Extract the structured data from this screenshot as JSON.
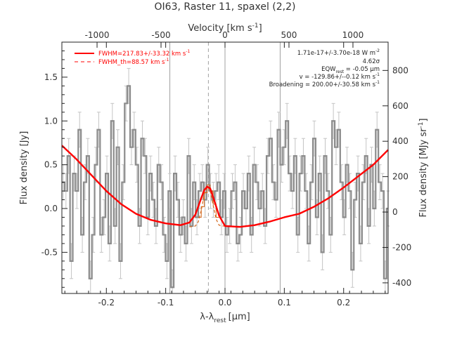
{
  "chart_data": {
    "type": "line",
    "title": "OI63, Raster 11, spaxel (2,2)",
    "xlabel": "λ-λ",
    "xlabel_sub": "rest",
    "xlabel_unit": "[μm]",
    "ylabel": "Flux density [Jy]",
    "x2label": "Velocity [km s",
    "x2label_sup": "-1",
    "x2label_end": "]",
    "y2label": "Flux density [MJy sr",
    "y2label_sup": "-1",
    "y2label_end": "]",
    "xlim": [
      -0.275,
      0.275
    ],
    "ylim": [
      -0.97,
      1.9
    ],
    "x2lim": [
      -1275,
      1275
    ],
    "y2lim": [
      -460,
      960
    ],
    "xticks": [
      -0.2,
      -0.1,
      0.0,
      0.1,
      0.2
    ],
    "xtick_labels": [
      "-0.2",
      "-0.1",
      "0.0",
      "0.1",
      "0.2"
    ],
    "yticks": [
      -0.5,
      0.0,
      0.5,
      1.0,
      1.5
    ],
    "ytick_labels": [
      "-0.5",
      "0.0",
      "0.5",
      "1.0",
      "1.5"
    ],
    "x2ticks": [
      -1000,
      -500,
      0,
      500,
      1000
    ],
    "x2tick_labels": [
      "-1000",
      "-500",
      "0",
      "500",
      "1000"
    ],
    "y2ticks": [
      -400,
      -200,
      0,
      200,
      400,
      600,
      800
    ],
    "y2tick_labels": [
      "-400",
      "-200",
      "0",
      "200",
      "400",
      "600",
      "800"
    ],
    "vlines_solid": [
      -0.093,
      0.0,
      0.093
    ],
    "vline_dashed": -0.028,
    "legend": {
      "placement": "top-left",
      "entries": [
        "FWHM=217.83+/-33.32 km s",
        "FWHM_th=88.57 km s"
      ],
      "entry_sup": "-1"
    },
    "annotations": [
      {
        "text": "1.71e-17+/-3.70e-18 W m",
        "sup": "-2"
      },
      {
        "text": "4.62σ",
        "sup": ""
      },
      {
        "text": "EQW",
        "sub": "rest",
        "text2": " = -0.05 μm"
      },
      {
        "text": "v = -129.86+/--0.12 km s",
        "sup": "-1"
      },
      {
        "text": "Broadening = 200.00+/-30.58 km s",
        "sup": "-1"
      }
    ],
    "colors": {
      "data": "#8c8c8c",
      "fit": "#ff0000",
      "line_profile": "#d2691e",
      "vline": "#a0a0a0",
      "text": "#333333"
    },
    "series": [
      {
        "name": "data",
        "style": "step-histogram-with-errorbars",
        "x": [
          -0.275,
          -0.2704,
          -0.2658,
          -0.2612,
          -0.2566,
          -0.252,
          -0.2474,
          -0.2428,
          -0.2382,
          -0.2336,
          -0.229,
          -0.2244,
          -0.2198,
          -0.2152,
          -0.2106,
          -0.206,
          -0.2014,
          -0.1968,
          -0.1922,
          -0.1876,
          -0.183,
          -0.1784,
          -0.1738,
          -0.1692,
          -0.1646,
          -0.16,
          -0.1554,
          -0.1508,
          -0.1462,
          -0.1416,
          -0.137,
          -0.1324,
          -0.1278,
          -0.1232,
          -0.1186,
          -0.114,
          -0.1094,
          -0.1048,
          -0.1002,
          -0.0956,
          -0.091,
          -0.0864,
          -0.0818,
          -0.0772,
          -0.0726,
          -0.068,
          -0.0634,
          -0.0588,
          -0.0542,
          -0.0496,
          -0.045,
          -0.0404,
          -0.0358,
          -0.0312,
          -0.0266,
          -0.022,
          -0.0174,
          -0.0128,
          -0.0082,
          -0.0036,
          0.001,
          0.0056,
          0.0102,
          0.0148,
          0.0194,
          0.024,
          0.0286,
          0.0332,
          0.0378,
          0.0424,
          0.047,
          0.0516,
          0.0562,
          0.0608,
          0.0654,
          0.07,
          0.0746,
          0.0792,
          0.0838,
          0.0884,
          0.093,
          0.0976,
          0.1022,
          0.1068,
          0.1114,
          0.116,
          0.1206,
          0.1252,
          0.1298,
          0.1344,
          0.139,
          0.1436,
          0.1482,
          0.1528,
          0.1574,
          0.162,
          0.1666,
          0.1712,
          0.1758,
          0.1804,
          0.185,
          0.1896,
          0.1942,
          0.1988,
          0.2034,
          0.208,
          0.2126,
          0.2172,
          0.2218,
          0.2264,
          0.231,
          0.2356,
          0.2402,
          0.2448,
          0.2494,
          0.254,
          0.2586,
          0.2632,
          0.2678,
          0.2724
        ],
        "y": [
          0.3,
          0.2,
          0.6,
          -0.6,
          0.4,
          0.2,
          0.9,
          -0.3,
          0.3,
          0.6,
          -0.8,
          -0.3,
          0.5,
          0.9,
          -0.3,
          -0.1,
          0.4,
          -0.4,
          1.0,
          -0.2,
          0.7,
          -0.6,
          0.3,
          1.2,
          1.4,
          0.7,
          0.9,
          0.5,
          -0.2,
          0.8,
          0.6,
          -0.1,
          0.4,
          0.1,
          -0.2,
          0.5,
          0.3,
          -0.3,
          -0.6,
          0.2,
          -0.9,
          0.4,
          0.1,
          -0.3,
          -0.1,
          -0.4,
          0.6,
          -0.2,
          0.3,
          -0.1,
          0.2,
          0.3,
          0.1,
          0.5,
          0.2,
          0.1,
          0.2,
          0.3,
          -0.1,
          0.2,
          -0.3,
          -0.2,
          0.2,
          0.3,
          -0.4,
          -0.3,
          0.2,
          0.0,
          0.4,
          -0.3,
          0.5,
          0.3,
          0.0,
          0.2,
          -0.2,
          0.6,
          0.8,
          0.3,
          0.1,
          0.9,
          0.5,
          0.7,
          1.0,
          0.4,
          0.2,
          0.6,
          -0.3,
          0.4,
          0.6,
          0.2,
          -0.4,
          0.3,
          0.8,
          -0.1,
          0.4,
          -0.5,
          0.6,
          0.2,
          -0.3,
          1.0,
          0.7,
          0.9,
          0.3,
          -0.1,
          0.5,
          0.2,
          -0.7,
          0.1,
          0.4,
          -0.4,
          0.3,
          0.6,
          -0.2,
          0.5,
          0.0,
          0.9,
          0.3,
          0.2,
          -0.8,
          0.0
        ],
        "yerr": 0.2
      },
      {
        "name": "FWHM=217.83+/-33.32 km s-1",
        "style": "solid",
        "x": [
          -0.275,
          -0.25,
          -0.225,
          -0.2,
          -0.175,
          -0.15,
          -0.125,
          -0.1,
          -0.075,
          -0.06,
          -0.05,
          -0.04,
          -0.035,
          -0.03,
          -0.025,
          -0.02,
          -0.01,
          0.0,
          0.025,
          0.05,
          0.075,
          0.1,
          0.125,
          0.15,
          0.175,
          0.2,
          0.225,
          0.25,
          0.275
        ],
        "y": [
          0.72,
          0.56,
          0.38,
          0.2,
          0.05,
          -0.06,
          -0.13,
          -0.17,
          -0.19,
          -0.16,
          -0.07,
          0.12,
          0.21,
          0.25,
          0.23,
          0.13,
          -0.08,
          -0.2,
          -0.21,
          -0.19,
          -0.15,
          -0.1,
          -0.06,
          0.02,
          0.12,
          0.24,
          0.37,
          0.5,
          0.67
        ]
      },
      {
        "name": "FWHM_th=88.57 km s-1",
        "style": "dashed",
        "x": [
          -0.06,
          -0.05,
          -0.045,
          -0.04,
          -0.035,
          -0.03,
          -0.025,
          -0.02,
          -0.015,
          -0.01,
          -0.005,
          0.0
        ],
        "y": [
          -0.21,
          -0.2,
          -0.15,
          -0.02,
          0.16,
          0.26,
          0.2,
          0.04,
          -0.12,
          -0.19,
          -0.2,
          -0.2
        ]
      },
      {
        "name": "line-profile",
        "style": "step-overlay",
        "x": [
          -0.045,
          -0.04,
          -0.035,
          -0.03,
          -0.025,
          -0.02,
          -0.015
        ],
        "y": [
          -0.1,
          0.02,
          0.18,
          0.27,
          0.2,
          0.05,
          -0.1
        ]
      }
    ]
  }
}
